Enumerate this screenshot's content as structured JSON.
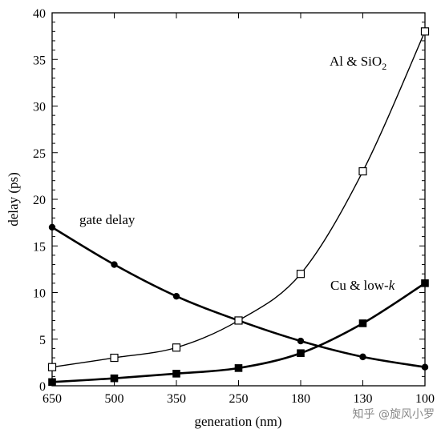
{
  "chart_data": {
    "type": "line",
    "xlabel": "generation (nm)",
    "ylabel": "delay (ps)",
    "categories": [
      "650",
      "500",
      "350",
      "250",
      "180",
      "130",
      "100"
    ],
    "ylim": [
      0,
      40
    ],
    "yticks": [
      0,
      5,
      10,
      15,
      20,
      25,
      30,
      35,
      40
    ],
    "grid": false,
    "series": [
      {
        "name": "gate delay",
        "marker": "filled-circle",
        "values": [
          17,
          13,
          9.6,
          7,
          4.8,
          3.1,
          2
        ]
      },
      {
        "name": "Al & SiO2",
        "marker": "open-square",
        "values": [
          2,
          3,
          4.1,
          7,
          12,
          23,
          38
        ]
      },
      {
        "name": "Cu & low-k",
        "marker": "filled-square",
        "values": [
          0.4,
          0.8,
          1.3,
          1.9,
          3.5,
          6.7,
          11
        ]
      }
    ],
    "annotations": {
      "gate": "gate delay",
      "al_main": "Al & SiO",
      "al_sub": "2",
      "cu_main": "Cu & low-",
      "cu_k": "k"
    }
  },
  "watermark": "知乎 @旋风小罗"
}
